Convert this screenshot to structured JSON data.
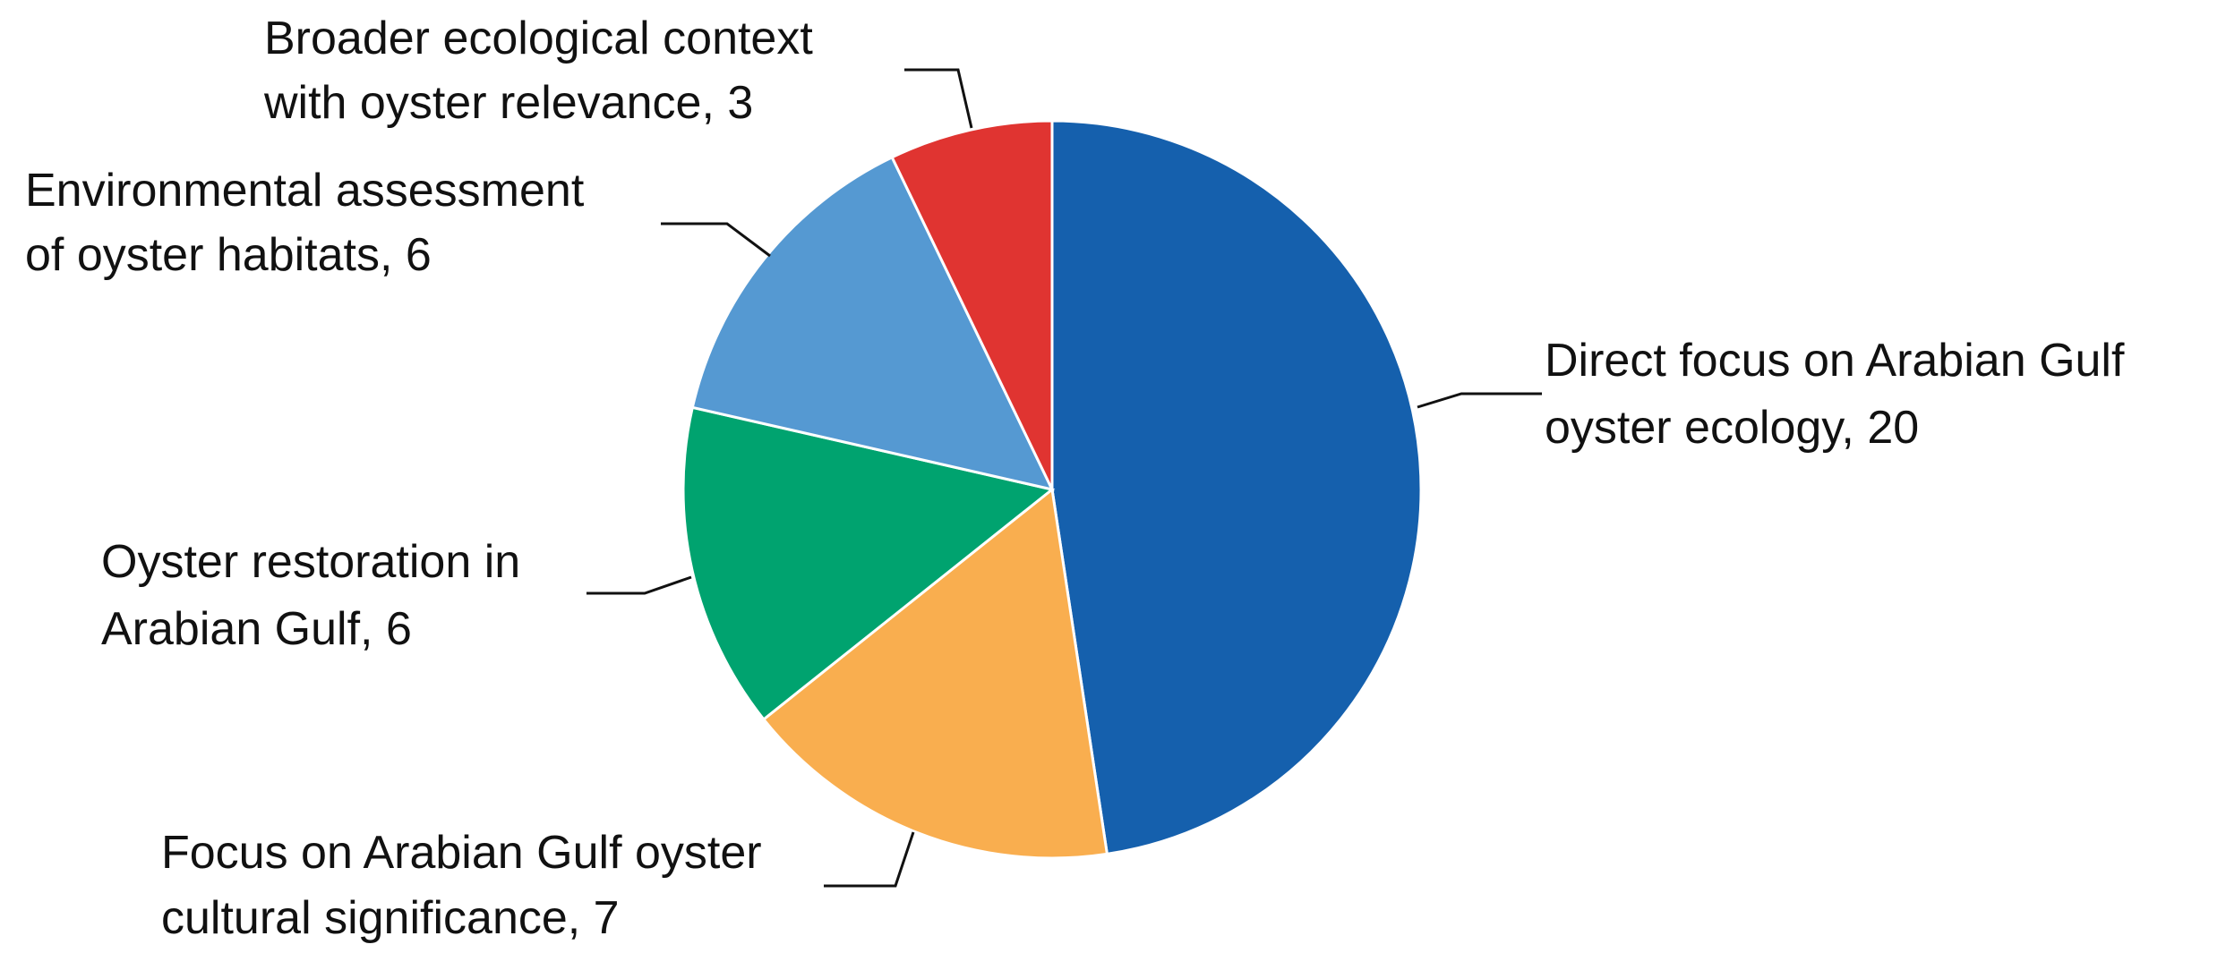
{
  "chart_data": {
    "type": "pie",
    "title": "",
    "legend": "none",
    "slices": [
      {
        "label": "Direct focus on Arabian Gulf oyster ecology",
        "value": 20,
        "color": "#1560AD",
        "label_lines": [
          "Direct focus on Arabian Gulf",
          "oyster ecology, 20"
        ]
      },
      {
        "label": "Focus on Arabian Gulf oyster cultural significance",
        "value": 7,
        "color": "#F9AE4F",
        "label_lines": [
          "Focus on Arabian Gulf oyster",
          "cultural significance, 7"
        ]
      },
      {
        "label": "Oyster restoration in Arabian Gulf",
        "value": 6,
        "color": "#00A36F",
        "label_lines": [
          "Oyster restoration in",
          "Arabian Gulf, 6"
        ]
      },
      {
        "label": "Environmental assessment of oyster habitats",
        "value": 6,
        "color": "#5599D2",
        "label_lines": [
          "Environmental assessment",
          "of oyster habitats, 6"
        ]
      },
      {
        "label": "Broader ecological context with oyster relevance",
        "value": 3,
        "color": "#E03431",
        "label_lines": [
          "Broader ecological context",
          "with oyster relevance, 3"
        ]
      }
    ],
    "start_angle": "12 o'clock",
    "direction": "clockwise"
  }
}
